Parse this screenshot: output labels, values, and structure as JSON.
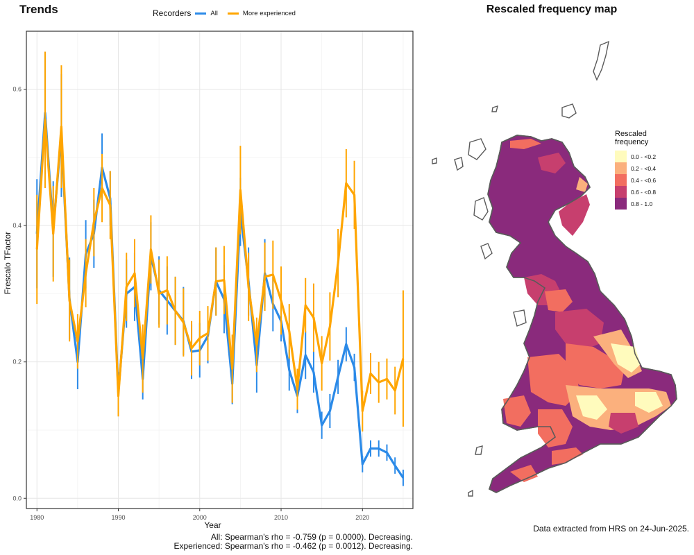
{
  "chart_data": [
    {
      "type": "line",
      "title": "Trends",
      "xlabel": "Year",
      "ylabel": "Frescalo TFactor",
      "xlim": [
        1978.7,
        2026.2
      ],
      "ylim": [
        -0.015,
        0.685
      ],
      "xticks": [
        "1980",
        "1990",
        "2000",
        "2010",
        "2020"
      ],
      "yticks": [
        "0.0",
        "0.2",
        "0.4",
        "0.6"
      ],
      "grid": true,
      "legend": {
        "title": "Recorders",
        "position": "top"
      },
      "x": [
        1980,
        1981,
        1982,
        1983,
        1984,
        1985,
        1986,
        1987,
        1988,
        1989,
        1990,
        1991,
        1992,
        1993,
        1994,
        1995,
        1996,
        1997,
        1998,
        1999,
        2000,
        2001,
        2002,
        2003,
        2004,
        2005,
        2006,
        2007,
        2008,
        2009,
        2010,
        2011,
        2012,
        2013,
        2014,
        2015,
        2016,
        2017,
        2018,
        2019,
        2020,
        2021,
        2022,
        2023,
        2024,
        2025
      ],
      "series": [
        {
          "name": "All",
          "color": "#2b8ae8",
          "values": [
            0.388,
            0.565,
            0.395,
            0.532,
            0.293,
            0.2,
            0.358,
            0.388,
            0.485,
            0.44,
            0.155,
            0.3,
            0.31,
            0.175,
            0.355,
            0.305,
            0.29,
            0.275,
            0.26,
            0.215,
            0.217,
            0.238,
            0.318,
            0.292,
            0.168,
            0.42,
            0.318,
            0.195,
            0.33,
            0.285,
            0.26,
            0.188,
            0.15,
            0.21,
            0.185,
            0.107,
            0.128,
            0.178,
            0.226,
            0.192,
            0.05,
            0.073,
            0.073,
            0.067,
            0.048,
            0.03
          ],
          "errors": [
            0.08,
            0.09,
            0.07,
            0.09,
            0.06,
            0.04,
            0.05,
            0.05,
            0.05,
            0.04,
            0.03,
            0.05,
            0.05,
            0.03,
            0.05,
            0.05,
            0.05,
            0.05,
            0.05,
            0.04,
            0.04,
            0.04,
            0.05,
            0.05,
            0.03,
            0.05,
            0.05,
            0.04,
            0.05,
            0.04,
            0.03,
            0.03,
            0.025,
            0.035,
            0.03,
            0.02,
            0.025,
            0.025,
            0.025,
            0.02,
            0.012,
            0.012,
            0.012,
            0.012,
            0.012,
            0.012
          ]
        },
        {
          "name": "More experienced",
          "color": "#ffa500",
          "values": [
            0.365,
            0.555,
            0.388,
            0.545,
            0.29,
            0.23,
            0.33,
            0.405,
            0.455,
            0.43,
            0.15,
            0.31,
            0.33,
            0.205,
            0.365,
            0.3,
            0.305,
            0.275,
            0.258,
            0.22,
            0.235,
            0.242,
            0.318,
            0.32,
            0.19,
            0.452,
            0.31,
            0.225,
            0.325,
            0.328,
            0.29,
            0.245,
            0.16,
            0.283,
            0.265,
            0.198,
            0.252,
            0.345,
            0.462,
            0.445,
            0.128,
            0.183,
            0.17,
            0.175,
            0.158,
            0.205
          ],
          "errors": [
            0.08,
            0.1,
            0.07,
            0.09,
            0.06,
            0.04,
            0.05,
            0.05,
            0.05,
            0.05,
            0.03,
            0.05,
            0.05,
            0.05,
            0.05,
            0.05,
            0.05,
            0.05,
            0.05,
            0.04,
            0.04,
            0.04,
            0.05,
            0.05,
            0.05,
            0.065,
            0.05,
            0.04,
            0.05,
            0.05,
            0.05,
            0.04,
            0.03,
            0.04,
            0.05,
            0.04,
            0.05,
            0.05,
            0.05,
            0.05,
            0.03,
            0.03,
            0.03,
            0.03,
            0.035,
            0.1
          ]
        }
      ],
      "annotations": [
        "All: Spearman's rho = -0.759 (p = 0.0000). Decreasing.",
        "Experienced: Spearman's rho = -0.462 (p = 0.0012). Decreasing."
      ]
    },
    {
      "type": "heatmap",
      "title": "Rescaled frequency map",
      "legend": {
        "title": "Rescaled frequency",
        "title_lines": [
          "Rescaled",
          "frequency"
        ],
        "position": "right",
        "entries": [
          {
            "label": "0.0 - <0.2",
            "color": "#fffbbd"
          },
          {
            "label": "0.2 - <0.4",
            "color": "#fbb07d"
          },
          {
            "label": "0.4 - <0.6",
            "color": "#f26e60"
          },
          {
            "label": "0.6 - <0.8",
            "color": "#c73f6e"
          },
          {
            "label": "0.8 - 1.0",
            "color": "#8a2a7c"
          }
        ]
      },
      "outline_color": "#5a5a5a"
    }
  ],
  "source_note": "Data extracted from HRS on 24-Jun-2025."
}
